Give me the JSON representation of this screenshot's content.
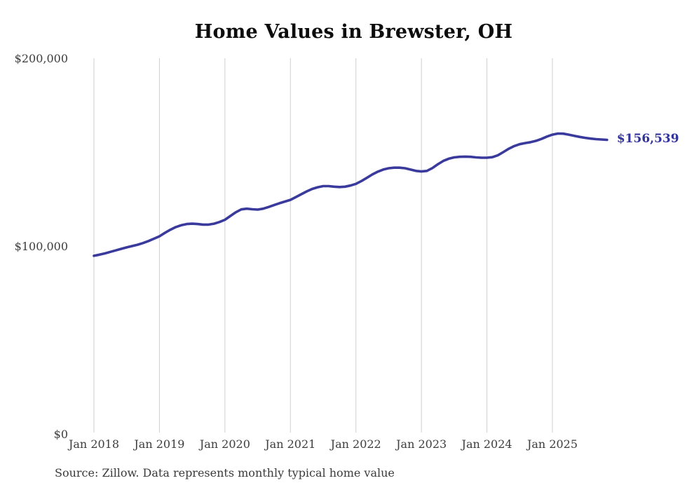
{
  "chart_data": {
    "type": "line",
    "title": "Home Values in Brewster, OH",
    "source_note": "Source: Zillow. Data represents monthly typical home value",
    "xlabel": "",
    "ylabel": "",
    "ylim": [
      0,
      200000
    ],
    "grid": "vertical-only",
    "legend": "none",
    "colors": {
      "line": "#3a3a9c",
      "grid": "#cfcfcf",
      "end_label": "#32329b"
    },
    "x_tick_labels": [
      "Jan 2018",
      "Jan 2019",
      "Jan 2020",
      "Jan 2021",
      "Jan 2022",
      "Jan 2023",
      "Jan 2024",
      "Jan 2025"
    ],
    "y_ticks": [
      {
        "value": 0,
        "label": "$0"
      },
      {
        "value": 100000,
        "label": "$100,000"
      },
      {
        "value": 200000,
        "label": "$200,000"
      }
    ],
    "series": [
      {
        "name": "Typical home value",
        "end_label": "$156,539",
        "x": [
          "2018-01",
          "2018-02",
          "2018-03",
          "2018-04",
          "2018-05",
          "2018-06",
          "2018-07",
          "2018-08",
          "2018-09",
          "2018-10",
          "2018-11",
          "2018-12",
          "2019-01",
          "2019-02",
          "2019-03",
          "2019-04",
          "2019-05",
          "2019-06",
          "2019-07",
          "2019-08",
          "2019-09",
          "2019-10",
          "2019-11",
          "2019-12",
          "2020-01",
          "2020-02",
          "2020-03",
          "2020-04",
          "2020-05",
          "2020-06",
          "2020-07",
          "2020-08",
          "2020-09",
          "2020-10",
          "2020-11",
          "2020-12",
          "2021-01",
          "2021-02",
          "2021-03",
          "2021-04",
          "2021-05",
          "2021-06",
          "2021-07",
          "2021-08",
          "2021-09",
          "2021-10",
          "2021-11",
          "2021-12",
          "2022-01",
          "2022-02",
          "2022-03",
          "2022-04",
          "2022-05",
          "2022-06",
          "2022-07",
          "2022-08",
          "2022-09",
          "2022-10",
          "2022-11",
          "2022-12",
          "2023-01",
          "2023-02",
          "2023-03",
          "2023-04",
          "2023-05",
          "2023-06",
          "2023-07",
          "2023-08",
          "2023-09",
          "2023-10",
          "2023-11",
          "2023-12",
          "2024-01",
          "2024-02",
          "2024-03",
          "2024-04",
          "2024-05",
          "2024-06",
          "2024-07",
          "2024-08",
          "2024-09",
          "2024-10",
          "2024-11",
          "2024-12",
          "2025-01",
          "2025-02",
          "2025-03",
          "2025-04",
          "2025-05",
          "2025-06",
          "2025-07",
          "2025-08",
          "2025-09",
          "2025-10",
          "2025-11"
        ],
        "values": [
          94800,
          95400,
          96100,
          96900,
          97700,
          98500,
          99300,
          100000,
          100700,
          101600,
          102700,
          103900,
          105200,
          107000,
          108700,
          110100,
          111100,
          111700,
          111900,
          111700,
          111400,
          111400,
          111900,
          112800,
          114000,
          116000,
          118000,
          119500,
          119900,
          119600,
          119400,
          119900,
          120800,
          121800,
          122800,
          123700,
          124600,
          126100,
          127600,
          129100,
          130400,
          131300,
          131900,
          131900,
          131600,
          131400,
          131600,
          132200,
          133100,
          134600,
          136300,
          138100,
          139600,
          140700,
          141400,
          141700,
          141700,
          141400,
          140700,
          140000,
          139700,
          140000,
          141500,
          143500,
          145300,
          146500,
          147200,
          147500,
          147600,
          147500,
          147200,
          147000,
          147000,
          147300,
          148300,
          150000,
          151800,
          153200,
          154200,
          154800,
          155300,
          156000,
          157000,
          158300,
          159300,
          159900,
          159800,
          159300,
          158700,
          158100,
          157600,
          157200,
          156900,
          156700,
          156539
        ]
      }
    ]
  }
}
